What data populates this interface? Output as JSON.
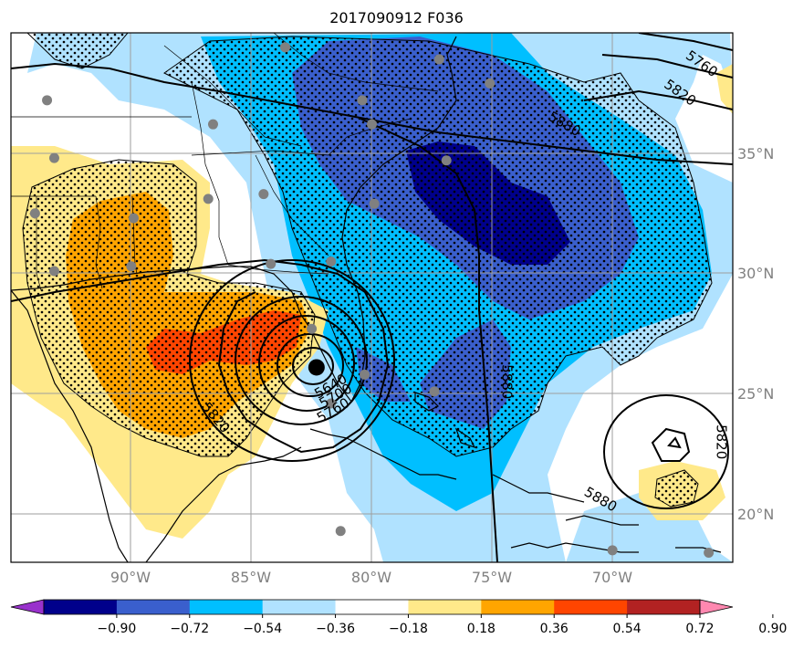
{
  "title": "2017090912 F036",
  "map": {
    "lon_range": [
      -95,
      -65
    ],
    "lat_range": [
      18,
      40
    ],
    "grid_lons": [
      -90,
      -85,
      -80,
      -75,
      -70
    ],
    "grid_lats": [
      20,
      25,
      30,
      35
    ],
    "lon_labels": [
      "90°W",
      "85°W",
      "80°W",
      "75°W",
      "70°W"
    ],
    "lat_labels": [
      "20°N",
      "25°N",
      "30°N",
      "35°N"
    ]
  },
  "colorbar": {
    "tick_labels": [
      "−0.90",
      "−0.72",
      "−0.54",
      "−0.36",
      "−0.18",
      "0.18",
      "0.36",
      "0.54",
      "0.72",
      "0.90"
    ],
    "colors": [
      "#9932cc",
      "#00008b",
      "#3a5fcd",
      "#00bfff",
      "#b0e2ff",
      "#ffffff",
      "#ffe98a",
      "#ffa500",
      "#ff4500",
      "#b22222",
      "#ff88b0"
    ]
  },
  "contour_labels": [
    {
      "text": "5760",
      "lon": -66.3,
      "lat": 38.7,
      "rot": 35
    },
    {
      "text": "5820",
      "lon": -67.2,
      "lat": 37.5,
      "rot": 35
    },
    {
      "text": "5880",
      "lon": -72.0,
      "lat": 36.2,
      "rot": 30
    },
    {
      "text": "5880",
      "lon": -74.4,
      "lat": 25.5,
      "rot": 90
    },
    {
      "text": "5820",
      "lon": -65.5,
      "lat": 23.0,
      "rot": 90
    },
    {
      "text": "5880",
      "lon": -70.5,
      "lat": 20.6,
      "rot": 30
    },
    {
      "text": "5820",
      "lon": -86.5,
      "lat": 24.0,
      "rot": 50
    },
    {
      "text": "5640",
      "lon": -81.7,
      "lat": 25.3,
      "rot": -30
    },
    {
      "text": "5700",
      "lon": -81.5,
      "lat": 24.9,
      "rot": -30
    },
    {
      "text": "5760",
      "lon": -81.6,
      "lat": 24.3,
      "rot": -30
    }
  ],
  "storm_center": {
    "lon": -82.3,
    "lat": 26.1
  },
  "stations": [
    [
      -93.5,
      37.2
    ],
    [
      -93.2,
      34.8
    ],
    [
      -86.6,
      36.2
    ],
    [
      -83.6,
      39.4
    ],
    [
      -77.2,
      38.9
    ],
    [
      -75.1,
      37.9
    ],
    [
      -80.4,
      37.2
    ],
    [
      -80.0,
      36.2
    ],
    [
      -76.9,
      34.7
    ],
    [
      -79.9,
      32.9
    ],
    [
      -84.5,
      33.3
    ],
    [
      -86.8,
      33.1
    ],
    [
      -89.9,
      32.3
    ],
    [
      -94.0,
      32.5
    ],
    [
      -93.2,
      30.1
    ],
    [
      -90.0,
      30.3
    ],
    [
      -84.2,
      30.4
    ],
    [
      -81.7,
      30.5
    ],
    [
      -82.5,
      27.7
    ],
    [
      -80.3,
      25.8
    ],
    [
      -81.7,
      24.6
    ],
    [
      -77.4,
      25.1
    ],
    [
      -81.3,
      19.3
    ],
    [
      -70.0,
      18.5
    ],
    [
      -66.0,
      18.4
    ]
  ]
}
